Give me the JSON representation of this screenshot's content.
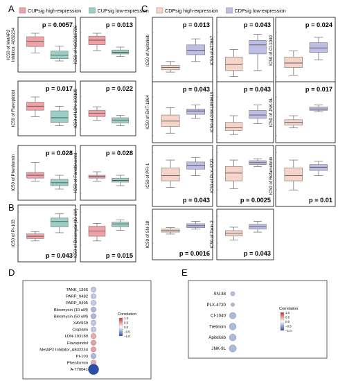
{
  "panel_letters": {
    "A": "A",
    "B": "B",
    "C": "C",
    "D": "D",
    "E": "E"
  },
  "colors": {
    "cup_high": "#f2a0a5",
    "cup_low": "#99cfc6",
    "cdp_high": "#f6d5c8",
    "cdp_low": "#bdbde6",
    "corr_high": "#c4302b",
    "corr_low": "#2b4fa8"
  },
  "legend_cup": {
    "high": "CUPsig high-expression",
    "low": "CUPsig low-expression"
  },
  "legend_cdp": {
    "high": "CDPsig high-expression",
    "low": "CDPsig low-expression"
  },
  "chart_data": [
    {
      "type": "box",
      "group": "CUPsig",
      "ylabel": "IC50 of  MetAP2 Inhibitor, A832234",
      "annotation": "p = 0.0057",
      "series": [
        {
          "name": "CUPsig high-expression",
          "box": [
            3.3,
            3.85,
            4.3,
            4.7,
            5.0
          ]
        },
        {
          "name": "CUPsig low-expression",
          "box": [
            2.6,
            2.8,
            3.1,
            3.45,
            3.9
          ]
        }
      ]
    },
    {
      "type": "box",
      "group": "CUPsig",
      "ylabel": "IC50 of NSC319726",
      "annotation": "p = 0.013",
      "series": [
        {
          "name": "CUPsig high-expression",
          "box": [
            3.5,
            4.0,
            4.4,
            4.75,
            5.0
          ]
        },
        {
          "name": "CUPsig low-expression",
          "box": [
            3.0,
            3.2,
            3.35,
            3.55,
            3.8
          ]
        }
      ]
    },
    {
      "type": "box",
      "group": "CUPsig",
      "ylabel": "IC50 of Flavopiridol",
      "annotation": "p = 0.017",
      "series": [
        {
          "name": "CUPsig high-expression",
          "box": [
            3.3,
            3.85,
            4.2,
            4.55,
            5.0
          ]
        },
        {
          "name": "CUPsig low-expression",
          "box": [
            2.5,
            2.8,
            3.2,
            3.8,
            4.2
          ]
        }
      ]
    },
    {
      "type": "box",
      "group": "CUPsig",
      "ylabel": "IC50 of LDN-193189",
      "annotation": "p = 0.022",
      "series": [
        {
          "name": "CUPsig high-expression",
          "box": [
            3.0,
            3.3,
            3.6,
            3.85,
            4.15
          ]
        },
        {
          "name": "CUPsig low-expression",
          "box": [
            2.5,
            2.75,
            3.0,
            3.2,
            3.4
          ]
        }
      ]
    },
    {
      "type": "box",
      "group": "CUPsig",
      "ylabel": "IC50 of Phenformin",
      "annotation": "p = 0.028",
      "series": [
        {
          "name": "CUPsig high-expression",
          "box": [
            3.3,
            3.55,
            3.8,
            4.05,
            4.9
          ]
        },
        {
          "name": "CUPsig low-expression",
          "box": [
            2.6,
            2.9,
            3.15,
            3.45,
            3.8
          ]
        }
      ]
    },
    {
      "type": "box",
      "group": "CUPsig",
      "ylabel": "IC50 of Fanobinostat",
      "annotation": "p = 0.028",
      "series": [
        {
          "name": "CUPsig high-expression",
          "box": [
            3.3,
            3.55,
            3.7,
            3.8,
            4.1
          ]
        },
        {
          "name": "CUPsig low-expression",
          "box": [
            2.9,
            3.2,
            3.35,
            3.55,
            3.8
          ]
        }
      ]
    },
    {
      "type": "box",
      "group": "CUPsig",
      "ylabel": "IC50 of PI-103",
      "annotation": "p = 0.043",
      "series": [
        {
          "name": "CUPsig high-expression",
          "box": [
            2.6,
            2.8,
            3.0,
            3.2,
            3.4
          ]
        },
        {
          "name": "CUPsig low-expression",
          "box": [
            3.3,
            3.8,
            4.25,
            4.55,
            4.9
          ]
        }
      ]
    },
    {
      "type": "box",
      "group": "CUPsig",
      "ylabel": "IC50 of Bleomycin(10 uM)",
      "annotation": "p = 0.015",
      "series": [
        {
          "name": "CUPsig high-expression",
          "box": [
            2.6,
            3.0,
            3.45,
            3.85,
            4.1
          ]
        },
        {
          "name": "CUPsig low-expression",
          "box": [
            3.5,
            3.8,
            4.05,
            4.2,
            4.4
          ]
        }
      ]
    },
    {
      "type": "box",
      "group": "CDPsig",
      "ylabel": "IC50 of Apitolisib",
      "annotation": "p = 0.013",
      "series": [
        {
          "name": "CDPsig high-expression",
          "box": [
            2.5,
            2.65,
            2.8,
            2.95,
            3.2
          ]
        },
        {
          "name": "CDPsig low-expression",
          "box": [
            3.2,
            3.65,
            3.95,
            4.3,
            4.7
          ]
        }
      ]
    },
    {
      "type": "box",
      "group": "CDPsig",
      "ylabel": "IC50 of AT7867",
      "annotation": "p = 0.043",
      "series": [
        {
          "name": "CDPsig high-expression",
          "box": [
            2.2,
            2.6,
            3.0,
            3.5,
            4.0
          ]
        },
        {
          "name": "CDPsig low-expression",
          "box": [
            2.6,
            3.7,
            4.3,
            4.6,
            5.0
          ]
        }
      ]
    },
    {
      "type": "box",
      "group": "CDPsig",
      "ylabel": "IC50 of CI-1040",
      "annotation": "p = 0.024",
      "series": [
        {
          "name": "CDPsig high-expression",
          "box": [
            2.3,
            2.8,
            3.1,
            3.5,
            3.9
          ]
        },
        {
          "name": "CDPsig low-expression",
          "box": [
            3.3,
            3.8,
            4.1,
            4.45,
            4.8
          ]
        }
      ]
    },
    {
      "type": "box",
      "group": "CDPsig",
      "ylabel": "IC50 of EHT-1864",
      "annotation": "p = 0.043",
      "series": [
        {
          "name": "CDPsig high-expression",
          "box": [
            2.4,
            2.9,
            3.3,
            3.75,
            4.3
          ]
        },
        {
          "name": "CDPsig low-expression",
          "box": [
            3.5,
            3.8,
            4.05,
            4.2,
            4.5
          ]
        }
      ]
    },
    {
      "type": "box",
      "group": "CDPsig",
      "ylabel": "IC50 of GSK1059615",
      "annotation": "p = 0.043",
      "series": [
        {
          "name": "CDPsig high-expression",
          "box": [
            2.3,
            2.6,
            2.8,
            3.2,
            3.7
          ]
        },
        {
          "name": "CDPsig low-expression",
          "box": [
            3.1,
            3.5,
            3.75,
            4.1,
            4.5
          ]
        }
      ]
    },
    {
      "type": "box",
      "group": "CDPsig",
      "ylabel": "IC50 of JNK-9L",
      "annotation": "p = 0.017",
      "series": [
        {
          "name": "CDPsig high-expression",
          "box": [
            2.8,
            3.0,
            3.2,
            3.4,
            3.7
          ]
        },
        {
          "name": "CDPsig low-expression",
          "box": [
            4.0,
            4.1,
            4.2,
            4.35,
            4.5
          ]
        }
      ]
    },
    {
      "type": "box",
      "group": "CDPsig",
      "ylabel": "IC50 of PFI-1",
      "annotation": "p = 0.043",
      "series": [
        {
          "name": "CDPsig high-expression",
          "box": [
            2.4,
            2.9,
            3.3,
            3.9,
            4.5
          ]
        },
        {
          "name": "CDPsig low-expression",
          "box": [
            3.3,
            3.8,
            4.1,
            4.35,
            4.7
          ]
        }
      ]
    },
    {
      "type": "box",
      "group": "CDPsig",
      "ylabel": "IC50 of PLX-4720",
      "annotation": "p = 0.0025",
      "series": [
        {
          "name": "CDPsig high-expression",
          "box": [
            2.3,
            2.9,
            3.5,
            4.0,
            4.5
          ]
        },
        {
          "name": "CDPsig low-expression",
          "box": [
            4.0,
            4.15,
            4.3,
            4.45,
            4.6
          ]
        }
      ]
    },
    {
      "type": "box",
      "group": "CDPsig",
      "ylabel": "IC50 of Refametinib",
      "annotation": "p = 0.01",
      "series": [
        {
          "name": "CDPsig high-expression",
          "box": [
            2.2,
            2.9,
            3.3,
            3.9,
            4.5
          ]
        },
        {
          "name": "CDPsig low-expression",
          "box": [
            3.3,
            3.7,
            3.95,
            4.15,
            4.4
          ]
        }
      ]
    },
    {
      "type": "box",
      "group": "CDPsig",
      "ylabel": "IC50 of SN-38",
      "annotation": "p = 0.0016",
      "series": [
        {
          "name": "CDPsig high-expression",
          "box": [
            3.2,
            3.4,
            3.55,
            3.7,
            3.85
          ]
        },
        {
          "name": "CDPsig low-expression",
          "box": [
            3.7,
            3.85,
            4.05,
            4.25,
            4.5
          ]
        }
      ]
    },
    {
      "type": "box",
      "group": "CDPsig",
      "ylabel": "IC50 of Torin 2",
      "annotation": "p = 0.043",
      "series": [
        {
          "name": "CDPsig high-expression",
          "box": [
            2.6,
            3.0,
            3.3,
            3.55,
            3.9
          ]
        },
        {
          "name": "CDPsig low-expression",
          "box": [
            3.4,
            3.7,
            3.95,
            4.2,
            4.5
          ]
        }
      ]
    },
    {
      "type": "bubble",
      "legend_title": "Correlation",
      "ticks": [
        "1.0",
        "0.5",
        "0.0",
        "−0.5",
        "−1.0"
      ],
      "categories": [
        "TANK_1366",
        "PARP_9482",
        "PARP_9495",
        "Bleomycin (10 uM)",
        "Bleomycin (50 uM)",
        "XAV939",
        "Cisplatin",
        "LDN-193189",
        "Flavopiridol",
        "MetAP2 Inhibitor, A832234",
        "PI-103",
        "Phenformin",
        "A-770041"
      ],
      "values": [
        -0.3,
        -0.3,
        -0.3,
        -0.4,
        -0.4,
        -0.3,
        -0.3,
        0.4,
        0.45,
        0.45,
        -0.4,
        0.4,
        -1.0
      ],
      "size": [
        0.3,
        0.3,
        0.3,
        0.3,
        0.3,
        0.3,
        0.3,
        0.3,
        0.3,
        0.3,
        0.3,
        0.3,
        1.0
      ]
    },
    {
      "type": "bubble",
      "legend_title": "Correlation",
      "ticks": [
        "1.0",
        "0.5",
        "0.0",
        "−0.5",
        "−1.0"
      ],
      "categories": [
        "SN-38",
        "PLX-4720",
        "CI-1040",
        "Tretinoin",
        "Apitolisib",
        "JNK-9L"
      ],
      "values": [
        -0.35,
        -0.4,
        -0.4,
        -0.4,
        -0.4,
        -0.4
      ],
      "size": [
        0.25,
        0.15,
        0.55,
        0.6,
        0.6,
        0.65
      ]
    }
  ]
}
